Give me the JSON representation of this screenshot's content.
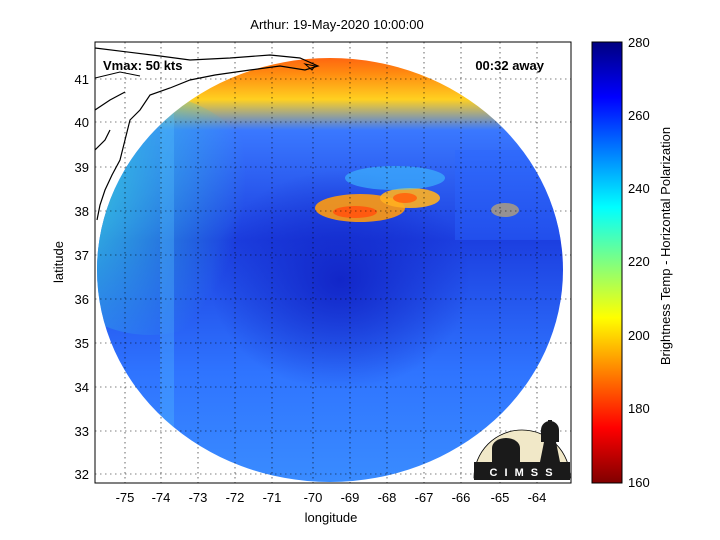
{
  "figure": {
    "title": "Arthur: 19-May-2020 10:00:00",
    "vmax_label": "Vmax: 50 kts",
    "time_away_label": "00:32 away",
    "xlabel": "longitude",
    "ylabel": "latitude",
    "colorbar_label": "Brightness Temp - Horizontal Polarization",
    "logo_text": "C I M S S"
  },
  "map": {
    "x_ticks": [
      "-75",
      "-74",
      "-73",
      "-72",
      "-71",
      "-70",
      "-69",
      "-68",
      "-67",
      "-66",
      "-65",
      "-64"
    ],
    "y_ticks": [
      "41",
      "40",
      "39",
      "38",
      "37",
      "36",
      "35",
      "34",
      "33",
      "32"
    ],
    "lon_range": [
      -75.7,
      -63.2
    ],
    "lat_range": [
      31.8,
      41.8
    ],
    "grid": "dotted",
    "colorbar_ticks": [
      "280",
      "260",
      "240",
      "220",
      "200",
      "180",
      "160"
    ],
    "colorbar_range": [
      160,
      280
    ],
    "colormap": "jet"
  }
}
